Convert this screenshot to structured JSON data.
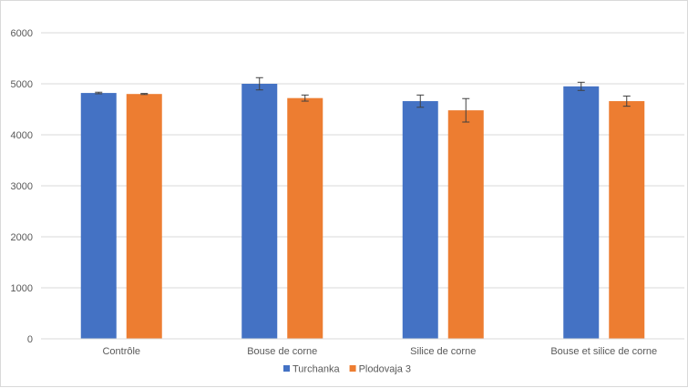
{
  "chart_data": {
    "type": "bar",
    "title": "",
    "xlabel": "",
    "ylabel": "",
    "categories": [
      "Contrôle",
      "Bouse de corne",
      "Silice de corne",
      "Bouse et silice de corne"
    ],
    "ylim": [
      0,
      6000
    ],
    "yticks": [
      0,
      1000,
      2000,
      3000,
      4000,
      5000,
      6000
    ],
    "grid": true,
    "legend_position": "bottom",
    "series": [
      {
        "name": "Turchanka",
        "color": "#4472c4",
        "values": [
          4820,
          5000,
          4660,
          4950
        ],
        "errors": [
          15,
          120,
          120,
          80
        ]
      },
      {
        "name": "Plodovaja 3",
        "color": "#ed7d31",
        "values": [
          4800,
          4720,
          4480,
          4660
        ],
        "errors": [
          10,
          60,
          230,
          100
        ]
      }
    ]
  }
}
